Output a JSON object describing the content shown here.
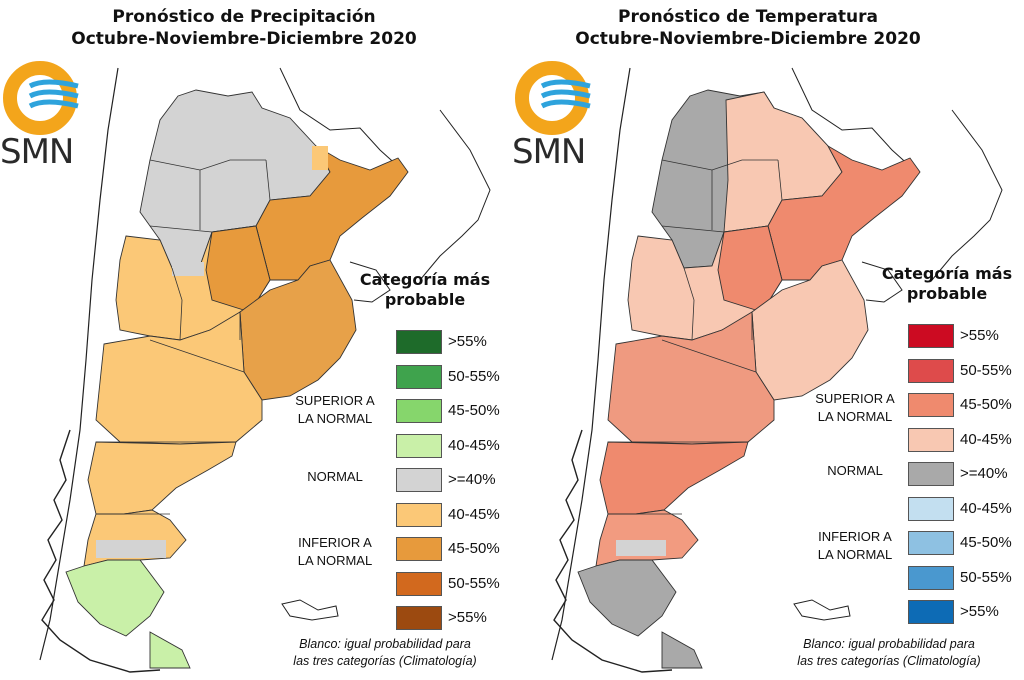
{
  "maps": [
    {
      "title_line1": "Pronóstico de Precipitación",
      "title_line2": "Octubre-Noviembre-Diciembre 2020",
      "logo_text": "SMN",
      "legend": {
        "title_line1": "Categoría más",
        "title_line2": "probable",
        "categories": [
          {
            "name_line1": "SUPERIOR A",
            "name_line2": "LA NORMAL"
          },
          {
            "name_line1": "NORMAL",
            "name_line2": ""
          },
          {
            "name_line1": "INFERIOR A",
            "name_line2": "LA NORMAL"
          }
        ],
        "items": [
          {
            "label": ">55%",
            "color": "#1e6b2a"
          },
          {
            "label": "50-55%",
            "color": "#3fa34d"
          },
          {
            "label": "45-50%",
            "color": "#86d66c"
          },
          {
            "label": "40-45%",
            "color": "#c9f0a8"
          },
          {
            "label": ">=40%",
            "color": "#d3d3d3"
          },
          {
            "label": "40-45%",
            "color": "#fbc877"
          },
          {
            "label": "45-50%",
            "color": "#e79a3c"
          },
          {
            "label": "50-55%",
            "color": "#d2691e"
          },
          {
            "label": ">55%",
            "color": "#9c4a10"
          }
        ]
      },
      "note_line1": "Blanco: igual probabilidad para",
      "note_line2": "las tres categorías (Climatología)"
    },
    {
      "title_line1": "Pronóstico de Temperatura",
      "title_line2": "Octubre-Noviembre-Diciembre 2020",
      "logo_text": "SMN",
      "legend": {
        "title_line1": "Categoría más",
        "title_line2": "probable",
        "categories": [
          {
            "name_line1": "SUPERIOR A",
            "name_line2": "LA NORMAL"
          },
          {
            "name_line1": "NORMAL",
            "name_line2": ""
          },
          {
            "name_line1": "INFERIOR A",
            "name_line2": "LA NORMAL"
          }
        ],
        "items": [
          {
            "label": ">55%",
            "color": "#cc0b22"
          },
          {
            "label": "50-55%",
            "color": "#de4b4b"
          },
          {
            "label": "45-50%",
            "color": "#ef8a6e"
          },
          {
            "label": "40-45%",
            "color": "#f8c8b2"
          },
          {
            "label": ">=40%",
            "color": "#a9a9a9"
          },
          {
            "label": "40-45%",
            "color": "#c3dff0"
          },
          {
            "label": "45-50%",
            "color": "#8ec1e2"
          },
          {
            "label": "50-55%",
            "color": "#4a98cf"
          },
          {
            "label": ">55%",
            "color": "#0d6bb5"
          }
        ]
      },
      "note_line1": "Blanco: igual probabilidad para",
      "note_line2": "las tres categorías (Climatología)"
    }
  ],
  "colors": {
    "logo_orange": "#f3a51b",
    "logo_blue": "#2ea3dc"
  }
}
